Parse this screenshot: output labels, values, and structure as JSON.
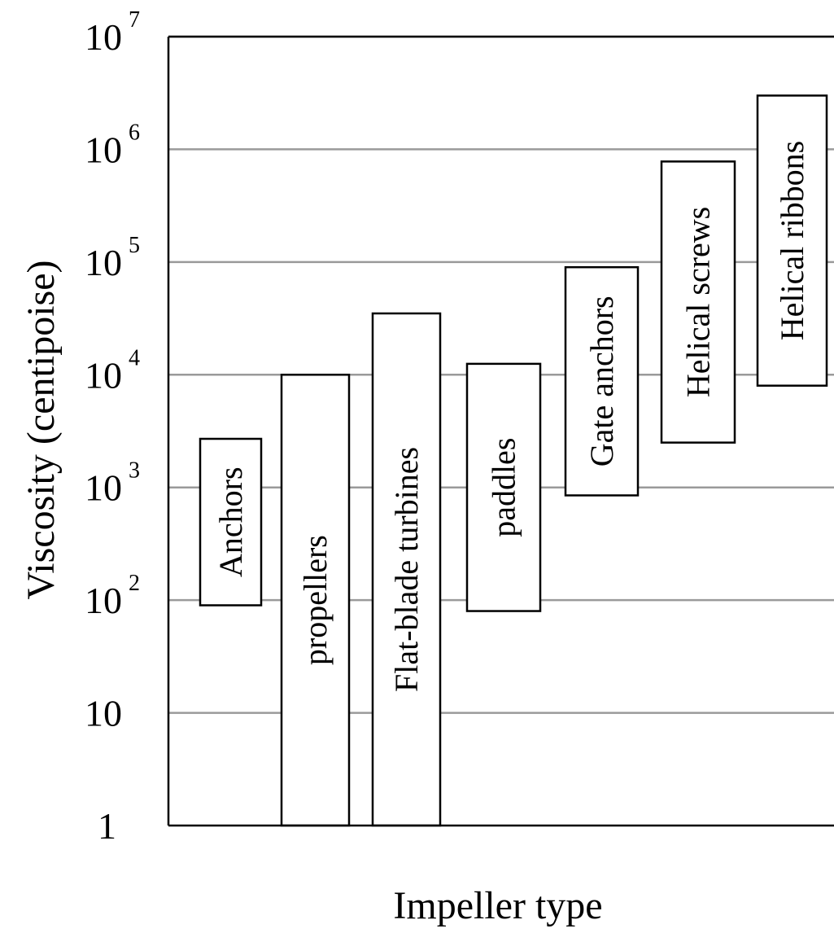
{
  "chart_data": {
    "type": "bar",
    "subtype": "floating-range",
    "xlabel": "Impeller type",
    "ylabel": "Viscosity (centipoise)",
    "y_scale": "log",
    "ylim": [
      1,
      10000000
    ],
    "y_ticks": [
      {
        "value": 1,
        "base": "1",
        "exp": ""
      },
      {
        "value": 10,
        "base": "10",
        "exp": ""
      },
      {
        "value": 100,
        "base": "10",
        "exp": "2"
      },
      {
        "value": 1000,
        "base": "10",
        "exp": "3"
      },
      {
        "value": 10000,
        "base": "10",
        "exp": "4"
      },
      {
        "value": 100000,
        "base": "10",
        "exp": "5"
      },
      {
        "value": 1000000,
        "base": "10",
        "exp": "6"
      },
      {
        "value": 10000000,
        "base": "10",
        "exp": "7"
      }
    ],
    "grid": true,
    "categories": [
      "Anchors",
      "propellers",
      "Flat-blade turbines",
      "paddles",
      "Gate anchors",
      "Helical screws",
      "Helical ribbons"
    ],
    "ranges": [
      {
        "label": "Anchors",
        "low": 90,
        "high": 2700
      },
      {
        "label": "propellers",
        "low": 1,
        "high": 10000
      },
      {
        "label": "Flat-blade turbines",
        "low": 1,
        "high": 35000
      },
      {
        "label": "paddles",
        "low": 80,
        "high": 12500
      },
      {
        "label": "Gate anchors",
        "low": 850,
        "high": 90000
      },
      {
        "label": "Helical screws",
        "low": 2500,
        "high": 780000
      },
      {
        "label": "Helical ribbons",
        "low": 8000,
        "high": 3000000
      }
    ]
  }
}
